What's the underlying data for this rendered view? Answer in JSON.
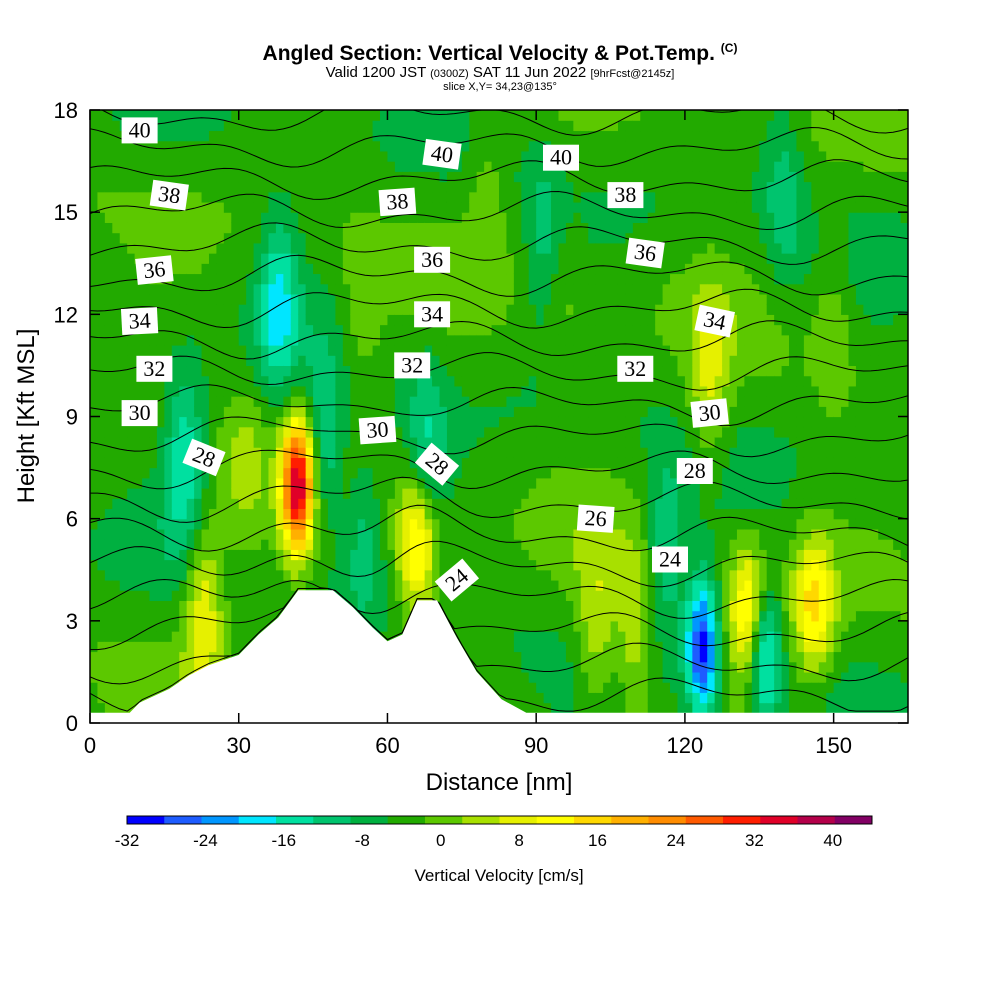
{
  "header": {
    "title": "Angled Section: Vertical Velocity & Pot.Temp.",
    "copyright": "(C)",
    "valid_prefix": "Valid 1200 JST",
    "valid_utc": "(0300Z)",
    "valid_date": "SAT 11 Jun 2022",
    "forecast": "[9hrFcst@2145z]",
    "slice": "slice X,Y= 34,23@135°"
  },
  "chart_data": {
    "type": "heatmap",
    "title": "Angled Section: Vertical Velocity & Pot.Temp.",
    "xlabel": "Distance [nm]",
    "ylabel": "Height [Kft MSL]",
    "xlim": [
      0,
      165
    ],
    "ylim": [
      0,
      18
    ],
    "x_ticks": [
      0,
      30,
      60,
      90,
      120,
      150
    ],
    "y_ticks": [
      0,
      3,
      6,
      9,
      12,
      15,
      18
    ],
    "colorbar": {
      "title": "Vertical Velocity [cm/s]",
      "min": -32,
      "max": 44,
      "step": 4,
      "tick_labels": [
        "-32",
        "-24",
        "-16",
        "-8",
        "0",
        "8",
        "16",
        "24",
        "32",
        "40"
      ],
      "colors": [
        "#0000ff",
        "#1e5cff",
        "#0096ff",
        "#00e6ff",
        "#00e0a0",
        "#00c46e",
        "#00b040",
        "#22aa00",
        "#5cc800",
        "#a8e000",
        "#e6f000",
        "#ffff00",
        "#ffd800",
        "#ffb000",
        "#ff8c00",
        "#ff5a00",
        "#ff1e00",
        "#e00028",
        "#b4004a",
        "#820064"
      ]
    },
    "background_value": -2,
    "updrafts": [
      {
        "x": 42,
        "y": 7.0,
        "peak": 40
      },
      {
        "x": 66,
        "y": 5.2,
        "peak": 22
      },
      {
        "x": 133,
        "y": 3.2,
        "peak": 20
      },
      {
        "x": 146,
        "y": 3.4,
        "peak": 18
      },
      {
        "x": 23,
        "y": 3.5,
        "peak": 14
      },
      {
        "x": 102,
        "y": 2.8,
        "peak": 10
      },
      {
        "x": 110,
        "y": 2.6,
        "peak": 10
      },
      {
        "x": 125,
        "y": 10.0,
        "peak": 10
      },
      {
        "x": 31,
        "y": 7.5,
        "peak": 6
      },
      {
        "x": 55,
        "y": 12.0,
        "peak": 6
      },
      {
        "x": 95,
        "y": 12.5,
        "peak": 5
      },
      {
        "x": 150,
        "y": 12.0,
        "peak": 5
      },
      {
        "x": 80,
        "y": 16.0,
        "peak": 5
      }
    ],
    "downdrafts": [
      {
        "x": 123.5,
        "y": 2.2,
        "peak": -28
      },
      {
        "x": 136,
        "y": 2.2,
        "peak": -22
      },
      {
        "x": 19,
        "y": 7.7,
        "peak": -14
      },
      {
        "x": 38,
        "y": 12.4,
        "peak": -14
      },
      {
        "x": 47,
        "y": 8.0,
        "peak": -12
      },
      {
        "x": 68,
        "y": 8.0,
        "peak": -10
      },
      {
        "x": 116,
        "y": 5.0,
        "peak": -10
      },
      {
        "x": 92,
        "y": 14.0,
        "peak": -8
      },
      {
        "x": 55,
        "y": 5.5,
        "peak": -8
      },
      {
        "x": 140,
        "y": 15.5,
        "peak": -8
      }
    ],
    "terrain": [
      {
        "x": 0,
        "h": 0.3
      },
      {
        "x": 8,
        "h": 0.3
      },
      {
        "x": 10,
        "h": 0.6
      },
      {
        "x": 16,
        "h": 1.0
      },
      {
        "x": 20,
        "h": 1.4
      },
      {
        "x": 24,
        "h": 1.7
      },
      {
        "x": 30,
        "h": 2.0
      },
      {
        "x": 34,
        "h": 2.6
      },
      {
        "x": 38,
        "h": 3.1
      },
      {
        "x": 42,
        "h": 3.9
      },
      {
        "x": 49,
        "h": 3.9
      },
      {
        "x": 53,
        "h": 3.4
      },
      {
        "x": 57,
        "h": 2.8
      },
      {
        "x": 60,
        "h": 2.4
      },
      {
        "x": 63,
        "h": 2.6
      },
      {
        "x": 66,
        "h": 3.6
      },
      {
        "x": 70,
        "h": 3.6
      },
      {
        "x": 74,
        "h": 2.5
      },
      {
        "x": 78,
        "h": 1.5
      },
      {
        "x": 83,
        "h": 0.7
      },
      {
        "x": 88,
        "h": 0.3
      },
      {
        "x": 165,
        "h": 0.3
      }
    ],
    "isentropes": {
      "levels": [
        22,
        23,
        24,
        25,
        26,
        27,
        28,
        29,
        30,
        31,
        32,
        33,
        34,
        35,
        36,
        37,
        38,
        39,
        40,
        41
      ],
      "labels": [
        {
          "text": "40",
          "x": 10,
          "y": 17.4,
          "angle": 0
        },
        {
          "text": "38",
          "x": 16,
          "y": 15.5,
          "angle": 8
        },
        {
          "text": "36",
          "x": 13,
          "y": 13.3,
          "angle": -6
        },
        {
          "text": "34",
          "x": 10,
          "y": 11.8,
          "angle": -3
        },
        {
          "text": "32",
          "x": 13,
          "y": 10.4,
          "angle": 0
        },
        {
          "text": "30",
          "x": 10,
          "y": 9.1,
          "angle": 0
        },
        {
          "text": "28",
          "x": 23,
          "y": 7.8,
          "angle": 22
        },
        {
          "text": "40",
          "x": 71,
          "y": 16.7,
          "angle": 8
        },
        {
          "text": "40",
          "x": 95,
          "y": 16.6,
          "angle": 0
        },
        {
          "text": "38",
          "x": 62,
          "y": 15.3,
          "angle": -4
        },
        {
          "text": "38",
          "x": 108,
          "y": 15.5,
          "angle": 0
        },
        {
          "text": "36",
          "x": 69,
          "y": 13.6,
          "angle": 0
        },
        {
          "text": "36",
          "x": 112,
          "y": 13.8,
          "angle": 8
        },
        {
          "text": "34",
          "x": 69,
          "y": 12.0,
          "angle": 0
        },
        {
          "text": "34",
          "x": 126,
          "y": 11.8,
          "angle": 12
        },
        {
          "text": "32",
          "x": 65,
          "y": 10.5,
          "angle": 0
        },
        {
          "text": "32",
          "x": 110,
          "y": 10.4,
          "angle": 0
        },
        {
          "text": "30",
          "x": 58,
          "y": 8.6,
          "angle": -4
        },
        {
          "text": "30",
          "x": 125,
          "y": 9.1,
          "angle": -6
        },
        {
          "text": "28",
          "x": 70,
          "y": 7.6,
          "angle": 40
        },
        {
          "text": "28",
          "x": 122,
          "y": 7.4,
          "angle": 0
        },
        {
          "text": "26",
          "x": 102,
          "y": 6.0,
          "angle": 4
        },
        {
          "text": "24",
          "x": 117,
          "y": 4.8,
          "angle": 0
        },
        {
          "text": "24",
          "x": 74,
          "y": 4.2,
          "angle": -40
        }
      ]
    }
  }
}
